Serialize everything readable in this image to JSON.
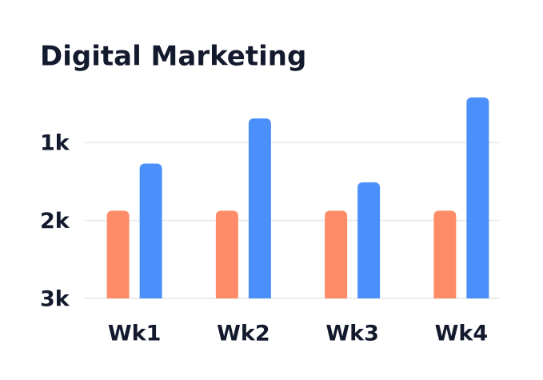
{
  "chart_data": {
    "type": "bar",
    "title": "Digital Marketing",
    "categories": [
      "Wk1",
      "Wk2",
      "Wk3",
      "Wk4"
    ],
    "series": [
      {
        "color": "#ff8c69",
        "values": [
          1875,
          1875,
          1875,
          1875
        ]
      },
      {
        "color": "#4a8ffa",
        "values": [
          1270,
          690,
          1510,
          420
        ]
      }
    ],
    "ylim": [
      3000,
      300
    ],
    "yticks": [
      {
        "value": 1000,
        "label": "1k"
      },
      {
        "value": 2000,
        "label": "2k"
      },
      {
        "value": 3000,
        "label": "3k"
      }
    ],
    "grid": true
  }
}
